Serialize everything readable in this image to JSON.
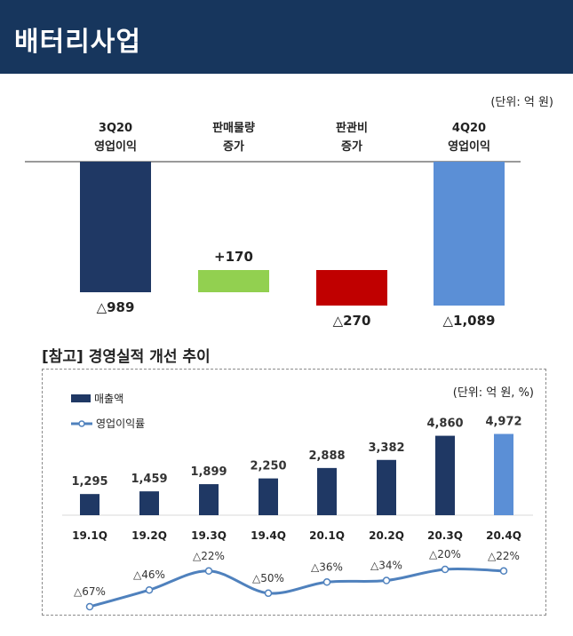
{
  "header": {
    "title": "배터리사업"
  },
  "unit_top": "(단위: 억 원)",
  "waterfall": {
    "categories": [
      "3Q20\n영업이익",
      "판매물량\n증가",
      "판관비\n증가",
      "4Q20\n영업이익"
    ],
    "labels": [
      "△989",
      "+170",
      "△270",
      "△1,089"
    ],
    "colors": [
      "#1f3864",
      "#92d050",
      "#c00000",
      "#5b8fd6"
    ]
  },
  "section_title": "[참고] 경영실적 개선 추이",
  "unit_box": "(단위: 억 원, %)",
  "legend": {
    "bar": "매출액",
    "line": "영업이익률"
  },
  "chart_data": [
    {
      "type": "bar",
      "title": "",
      "categories": [
        "3Q20 영업이익",
        "판매물량 증가",
        "판관비 증가",
        "4Q20 영업이익"
      ],
      "series": [
        {
          "values": [
            -989,
            170,
            -270,
            -1089
          ]
        }
      ],
      "data_labels": [
        "△989",
        "+170",
        "△270",
        "△1,089"
      ],
      "ylabel": "",
      "xlabel": "",
      "note": "(단위: 억 원)"
    },
    {
      "type": "bar",
      "title": "",
      "categories": [
        "19.1Q",
        "19.2Q",
        "19.3Q",
        "19.4Q",
        "20.1Q",
        "20.2Q",
        "20.3Q",
        "20.4Q"
      ],
      "series": [
        {
          "name": "매출액",
          "type": "bar",
          "values": [
            1295,
            1459,
            1899,
            2250,
            2888,
            3382,
            4860,
            4972
          ],
          "color": "#1f3864",
          "highlight_color": "#5b8fd6"
        },
        {
          "name": "영업이익률",
          "type": "line",
          "values": [
            -67,
            -46,
            -22,
            -50,
            -36,
            -34,
            -20,
            -22
          ],
          "color": "#4f81bd"
        }
      ],
      "bar_labels": [
        "1,295",
        "1,459",
        "1,899",
        "2,250",
        "2,888",
        "3,382",
        "4,860",
        "4,972"
      ],
      "line_labels": [
        "△67%",
        "△46%",
        "△22%",
        "△50%",
        "△36%",
        "△34%",
        "△20%",
        "△22%"
      ],
      "legend_position": "top-left",
      "note": "(단위: 억 원, %)"
    }
  ]
}
